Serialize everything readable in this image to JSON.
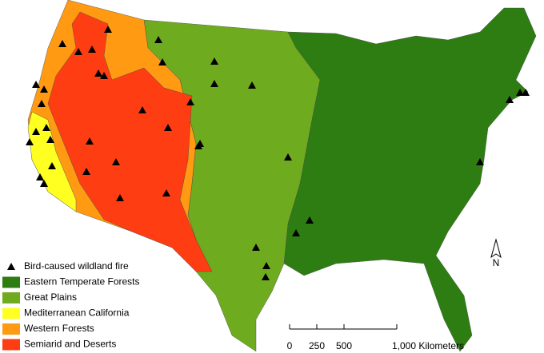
{
  "legend": {
    "items": [
      {
        "label": "Bird-caused wildland fire",
        "symbol": "triangle",
        "color": "#000000"
      },
      {
        "label": "Eastern Temperate Forests",
        "symbol": "swatch",
        "color": "#2e7d12"
      },
      {
        "label": "Great Plains",
        "symbol": "swatch",
        "color": "#6fab1e"
      },
      {
        "label": "Mediterranean California",
        "symbol": "swatch",
        "color": "#ffff22"
      },
      {
        "label": "Western Forests",
        "symbol": "swatch",
        "color": "#ff9a12"
      },
      {
        "label": "Semiarid and Deserts",
        "symbol": "swatch",
        "color": "#ff3d12"
      }
    ]
  },
  "scale_bar": {
    "labels": [
      "0",
      "250",
      "500",
      "1,000 Kilometers"
    ]
  },
  "north_arrow": {
    "label": "N"
  }
}
